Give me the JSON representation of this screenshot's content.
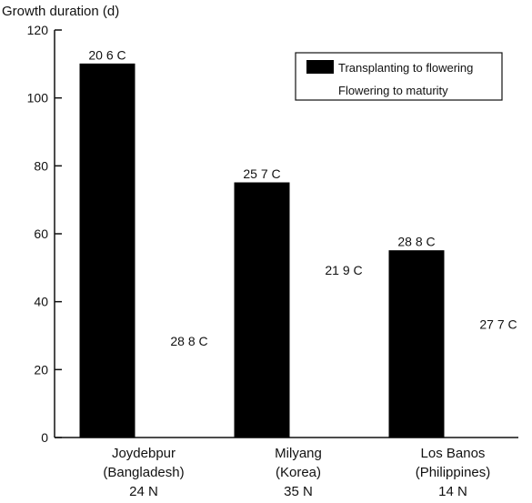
{
  "chart_data": {
    "type": "bar",
    "ylabel": "Growth duration (d)",
    "ylim": [
      0,
      120
    ],
    "y_ticks": [
      0,
      20,
      40,
      60,
      80,
      100,
      120
    ],
    "grid": false,
    "legend_position": "top-right",
    "colors": {
      "transplanting_to_flowering": "#000000",
      "flowering_to_maturity": "#ffffff",
      "axis": "#111111"
    },
    "categories": [
      {
        "name": "Joydebpur",
        "region": "(Bangladesh)",
        "latitude": "24 N"
      },
      {
        "name": "Milyang",
        "region": "(Korea)",
        "latitude": "35 N"
      },
      {
        "name": "Los Banos",
        "region": "(Philippines)",
        "latitude": "14 N"
      }
    ],
    "series": [
      {
        "name": "Transplanting to flowering",
        "color": "#000000",
        "values": [
          110,
          75,
          55
        ],
        "labels": [
          "20 6  C",
          "25 7  C",
          "28 8  C"
        ]
      },
      {
        "name": "Flowering to maturity",
        "color": "#ffffff",
        "values": [
          0,
          0,
          0
        ],
        "labels": [
          "28 8  C",
          "21 9  C",
          "27 7  C"
        ]
      }
    ]
  }
}
